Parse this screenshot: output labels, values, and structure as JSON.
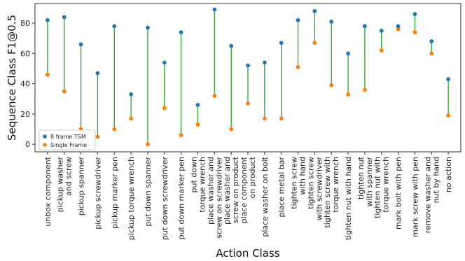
{
  "chart_data": {
    "type": "scatter",
    "xlabel": "Action Class",
    "ylabel": "Sequence Class F1@0.5",
    "ylim": [
      -5,
      93
    ],
    "yticks": [
      0,
      20,
      40,
      60,
      80
    ],
    "grid": false,
    "legend_position": "bottom-left",
    "categories": [
      "unbox component",
      "pickup washer\nand screw",
      "pickup spanner",
      "pickup screwdriver",
      "pickup marker pen",
      "pickup torque wrench",
      "put down spanner",
      "put down screwdriver",
      "put down marker pen",
      "put down\ntorque wrench",
      "place washer and\nscrew on screwdriver",
      "place washer and\nscrew on product",
      "place component\non product",
      "place washer on bolt",
      "place metal bar",
      "tighten screw\nwith hand",
      "tighten screw\nwith screwdriver",
      "tighten screw with\ntorque wrench",
      "tighten nut with hand",
      "tighten nut\nwith spanner",
      "tighten nut with\ntorque wrench",
      "mark bolt with pen",
      "mark screw with pen",
      "remove washer and\nnut by hand",
      "no action"
    ],
    "series": [
      {
        "name": "8 frame TSM",
        "color": "#1f77b4",
        "values": [
          82,
          84,
          66,
          47,
          78,
          33,
          77,
          54,
          74,
          26,
          89,
          65,
          52,
          54,
          67,
          82,
          88,
          81,
          60,
          78,
          75,
          78,
          86,
          68,
          43
        ]
      },
      {
        "name": "Single Frame",
        "color": "#ff7f0e",
        "values": [
          46,
          35,
          10,
          5,
          10,
          17,
          0,
          24,
          6,
          13,
          32,
          10,
          27,
          17,
          17,
          51,
          67,
          39,
          33,
          36,
          62,
          76,
          74,
          60,
          19
        ]
      }
    ],
    "connector_color": "#2ca02c"
  }
}
